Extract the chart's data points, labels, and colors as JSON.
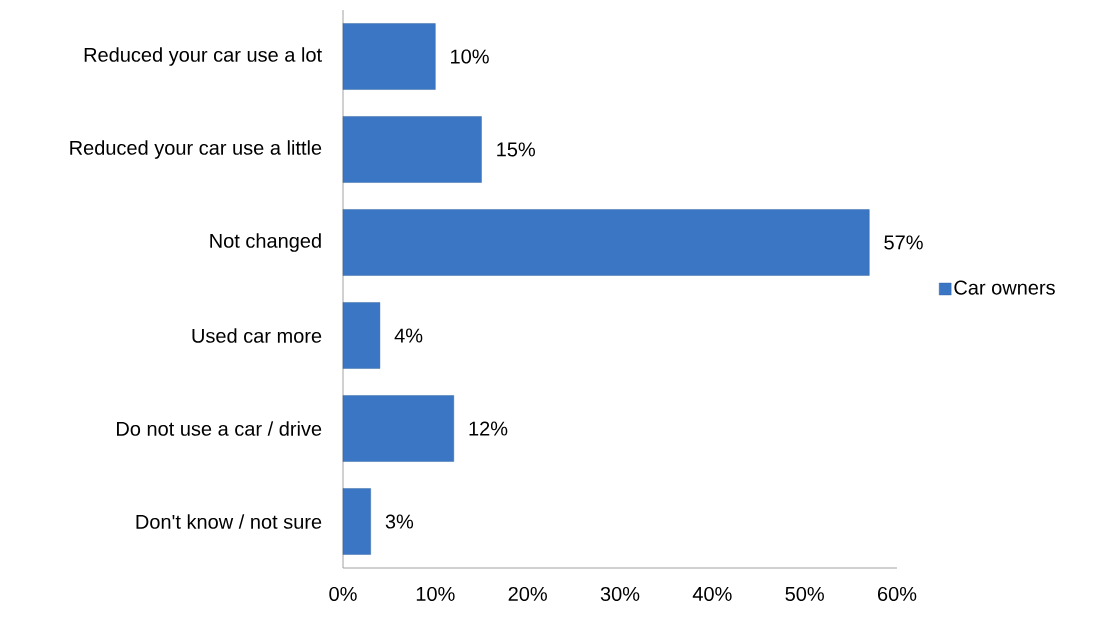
{
  "chart_data": {
    "type": "bar",
    "orientation": "horizontal",
    "categories": [
      "Reduced your car use a lot",
      "Reduced your car use a little",
      "Not changed",
      "Used car more",
      "Do not use a car / drive",
      "Don't know / not sure"
    ],
    "series": [
      {
        "name": "Car owners",
        "color": "#3a76c4",
        "values": [
          10,
          15,
          57,
          4,
          12,
          3
        ],
        "value_labels": [
          "10%",
          "15%",
          "57%",
          "4%",
          "12%",
          "3%"
        ]
      }
    ],
    "xlim": [
      0,
      60
    ],
    "xticks": [
      {
        "value": 0,
        "label": "0%"
      },
      {
        "value": 10,
        "label": "10%"
      },
      {
        "value": 20,
        "label": "20%"
      },
      {
        "value": 30,
        "label": "30%"
      },
      {
        "value": 40,
        "label": "40%"
      },
      {
        "value": 50,
        "label": "50%"
      },
      {
        "value": 60,
        "label": "60%"
      }
    ],
    "legend": "right"
  }
}
